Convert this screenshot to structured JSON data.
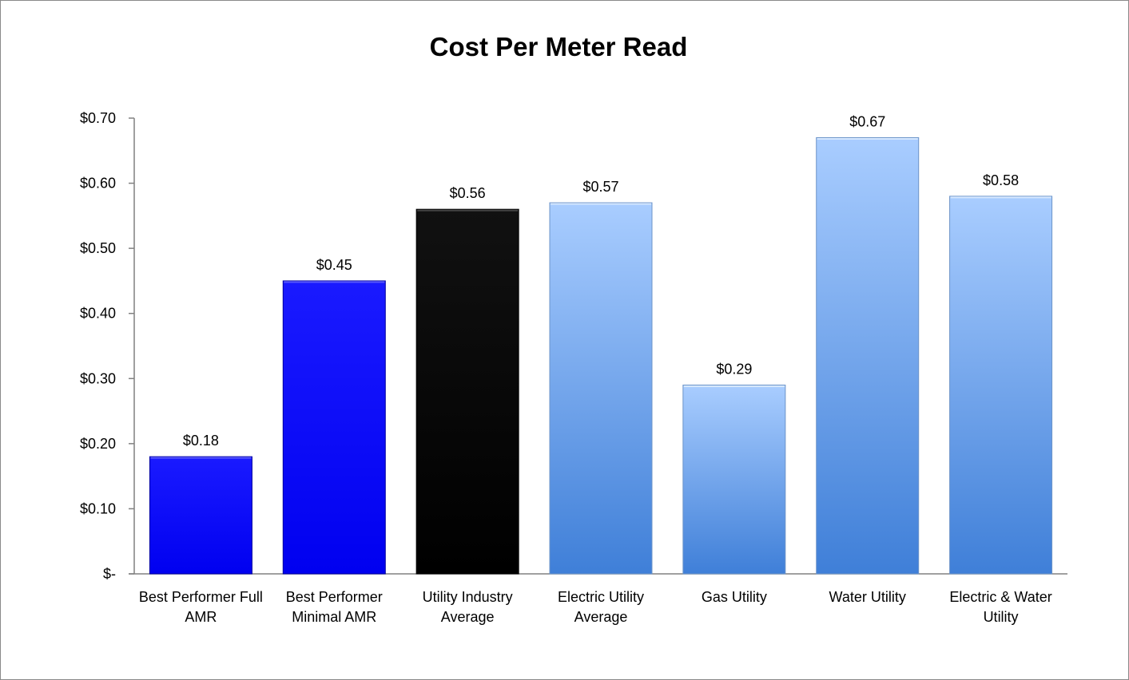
{
  "chart_data": {
    "type": "bar",
    "title": "Cost Per Meter Read",
    "categories": [
      [
        "Best Performer Full",
        "AMR"
      ],
      [
        "Best Performer",
        "Minimal AMR"
      ],
      [
        "Utility Industry",
        "Average"
      ],
      [
        "Electric Utility",
        "Average"
      ],
      [
        "Gas Utility"
      ],
      [
        "Water Utility"
      ],
      [
        "Electric & Water",
        "Utility"
      ]
    ],
    "values": [
      0.18,
      0.45,
      0.56,
      0.57,
      0.29,
      0.67,
      0.58
    ],
    "value_labels": [
      "$0.18",
      "$0.45",
      "$0.56",
      "$0.57",
      "$0.29",
      "$0.67",
      "$0.58"
    ],
    "bar_styles": [
      "blue",
      "blue",
      "black",
      "light-blue",
      "light-blue",
      "light-blue",
      "light-blue"
    ],
    "colors": {
      "blue": "#0000ff",
      "black": "#050505",
      "light-blue-top": "#a9cdff",
      "light-blue-bottom": "#3f7fd8"
    },
    "yticks": [
      0,
      0.1,
      0.2,
      0.3,
      0.4,
      0.5,
      0.6,
      0.7
    ],
    "ytick_labels": [
      "$-",
      "$0.10",
      "$0.20",
      "$0.30",
      "$0.40",
      "$0.50",
      "$0.60",
      "$0.70"
    ],
    "ylim": [
      0,
      0.7
    ],
    "xlabel": "",
    "ylabel": "",
    "grid": false,
    "legend": "none"
  }
}
